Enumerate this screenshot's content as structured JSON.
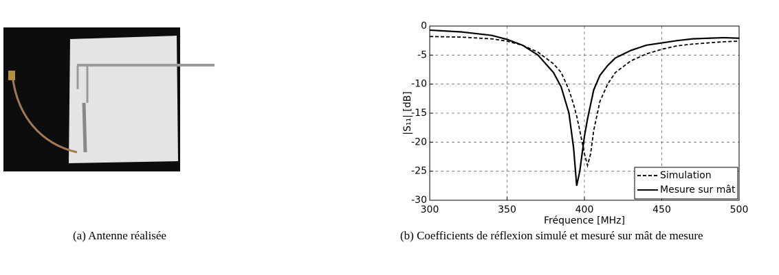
{
  "chart_data": {
    "type": "line",
    "xlabel": "Fréquence [MHz]",
    "ylabel": "|S₁₁| [dB]",
    "x": [
      300,
      320,
      340,
      350,
      360,
      370,
      380,
      385,
      390,
      393,
      395,
      397,
      400,
      402,
      404,
      406,
      410,
      415,
      420,
      430,
      440,
      450,
      460,
      470,
      480,
      490,
      500
    ],
    "series": [
      {
        "name": "Simulation",
        "color": "#000000",
        "dash": true,
        "values": [
          -1.8,
          -1.9,
          -2.2,
          -2.6,
          -3.3,
          -4.5,
          -6.5,
          -8,
          -11,
          -13.5,
          -15.5,
          -18,
          -22,
          -24,
          -22,
          -18,
          -13,
          -10,
          -8,
          -6,
          -4.8,
          -4,
          -3.4,
          -3.1,
          -2.9,
          -2.7,
          -2.6
        ]
      },
      {
        "name": "Mesure sur mât",
        "color": "#000000",
        "dash": false,
        "values": [
          -0.7,
          -1.0,
          -1.6,
          -2.3,
          -3.3,
          -5,
          -8,
          -10.5,
          -15,
          -21,
          -27.5,
          -25,
          -19,
          -16,
          -13.5,
          -11,
          -8.5,
          -6.8,
          -5.5,
          -4.2,
          -3.3,
          -2.9,
          -2.5,
          -2.2,
          -2.1,
          -2.0,
          -2.1
        ]
      }
    ],
    "xlim": [
      300,
      500
    ],
    "xticks": [
      300,
      350,
      400,
      450,
      500
    ],
    "ylim": [
      -30,
      0
    ],
    "yticks": [
      0,
      -5,
      -10,
      -15,
      -20,
      -25,
      -30
    ],
    "grid": true,
    "legend": "lower-right"
  },
  "captions": [
    "(a) Antenne réalisée",
    "(b) Coefficients de réflexion simulé et mesuré sur mât de mesure"
  ]
}
